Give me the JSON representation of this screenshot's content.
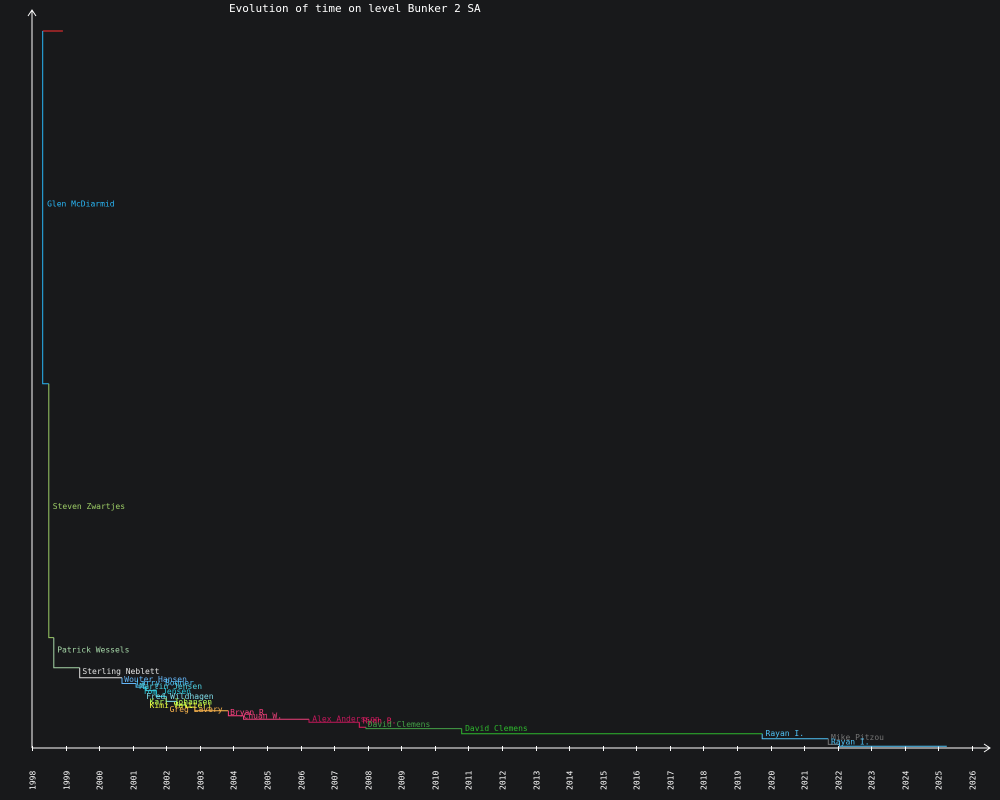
{
  "chart_data": {
    "type": "line",
    "title": "Evolution of time on level Bunker 2 SA",
    "xlabel": "",
    "ylabel": "",
    "x_ticks": [
      "1998",
      "1999",
      "2000",
      "2001",
      "2002",
      "2003",
      "2004",
      "2005",
      "2006",
      "2007",
      "2008",
      "2009",
      "2010",
      "2011",
      "2012",
      "2013",
      "2014",
      "2015",
      "2016",
      "2017",
      "2018",
      "2019",
      "2020",
      "2021",
      "2022",
      "2023",
      "2024",
      "2025",
      "2026"
    ],
    "xlim": [
      1998.0,
      2026.0
    ],
    "ylim": [
      0,
      100
    ],
    "grid": false,
    "legend": "none",
    "series": [
      {
        "name": "",
        "color": "#ff3030",
        "points": [
          [
            1998.32,
            100.0
          ],
          [
            1998.92,
            100.0
          ]
        ]
      },
      {
        "name": "Glen McDiarmid",
        "color": "#29b6f6",
        "label_at": [
          1998.45,
          75.5
        ],
        "points": [
          [
            1998.32,
            100.0
          ],
          [
            1998.32,
            50.8
          ],
          [
            1998.5,
            50.8
          ]
        ]
      },
      {
        "name": "Steven Zwartjes",
        "color": "#9ccc65",
        "label_at": [
          1998.62,
          33.3
        ],
        "points": [
          [
            1998.5,
            50.8
          ],
          [
            1998.5,
            15.4
          ],
          [
            1998.65,
            15.4
          ]
        ]
      },
      {
        "name": "Patrick Wessels",
        "color": "#a5d6a7",
        "label_at": [
          1998.75,
          13.3
        ],
        "points": [
          [
            1998.65,
            15.4
          ],
          [
            1998.65,
            11.2
          ],
          [
            1999.42,
            11.2
          ]
        ]
      },
      {
        "name": "Sterling Neblett",
        "color": "#e0e0e0",
        "label_at": [
          1999.5,
          10.3
        ],
        "points": [
          [
            1999.42,
            11.2
          ],
          [
            1999.42,
            9.8
          ],
          [
            2000.68,
            9.8
          ]
        ]
      },
      {
        "name": "Wouter Hansen",
        "color": "#64b5f6",
        "label_at": [
          2000.75,
          9.2
        ],
        "points": [
          [
            2000.68,
            9.8
          ],
          [
            2000.68,
            9.0
          ],
          [
            2001.1,
            9.0
          ]
        ]
      },
      {
        "name": "Larry Bodner",
        "color": "#4fc3f7",
        "label_at": [
          2001.1,
          8.7
        ],
        "points": [
          [
            2001.1,
            9.0
          ],
          [
            2001.1,
            8.5
          ],
          [
            2001.4,
            8.5
          ]
        ]
      },
      {
        "name": "Martin Jensen",
        "color": "#4dd0e1",
        "label_at": [
          2001.2,
          8.2
        ],
        "points": [
          [
            2001.4,
            8.5
          ],
          [
            2001.4,
            8.0
          ],
          [
            2001.7,
            8.0
          ]
        ]
      },
      {
        "name": "Tom Jensen",
        "color": "#26c6da",
        "label_at": [
          2001.3,
          7.5
        ],
        "points": [
          [
            2001.7,
            8.0
          ],
          [
            2001.7,
            7.2
          ],
          [
            2002.0,
            7.2
          ]
        ]
      },
      {
        "name": "Fred Wildhagen",
        "color": "#80deea",
        "label_at": [
          2001.4,
          6.8
        ],
        "points": [
          [
            2002.0,
            7.2
          ],
          [
            2002.0,
            6.5
          ],
          [
            2002.3,
            6.5
          ]
        ]
      },
      {
        "name": "Karl Johansen",
        "color": "#b2ff59",
        "label_at": [
          2001.5,
          6.1
        ],
        "points": [
          [
            2002.3,
            6.5
          ],
          [
            2002.3,
            6.0
          ],
          [
            2002.6,
            6.0
          ]
        ]
      },
      {
        "name": "Kimi Valtteri",
        "color": "#eeff41",
        "label_at": [
          2001.5,
          5.6
        ],
        "points": [
          [
            2002.6,
            6.0
          ],
          [
            2002.6,
            5.7
          ],
          [
            2002.85,
            5.7
          ]
        ]
      },
      {
        "name": "Greg Lavery",
        "color": "#ffb74d",
        "label_at": [
          2002.1,
          5.0
        ],
        "points": [
          [
            2002.85,
            5.7
          ],
          [
            2002.85,
            5.2
          ],
          [
            2003.85,
            5.2
          ]
        ]
      },
      {
        "name": "Bryan R.",
        "color": "#ff4081",
        "label_at": [
          2003.9,
          4.6
        ],
        "points": [
          [
            2003.85,
            5.2
          ],
          [
            2003.85,
            4.5
          ],
          [
            2004.3,
            4.5
          ]
        ]
      },
      {
        "name": "Chuan W.",
        "color": "#ec407a",
        "label_at": [
          2004.3,
          4.1
        ],
        "points": [
          [
            2004.3,
            4.5
          ],
          [
            2004.3,
            4.0
          ],
          [
            2006.25,
            4.0
          ]
        ]
      },
      {
        "name": "Alex Andersson",
        "color": "#c2185b",
        "label_at": [
          2006.35,
          3.7
        ],
        "points": [
          [
            2006.25,
            4.0
          ],
          [
            2006.25,
            3.6
          ],
          [
            2007.75,
            3.6
          ]
        ]
      },
      {
        "name": "Ryan B.",
        "color": "#e91e63",
        "label_at": [
          2007.85,
          3.4
        ],
        "points": [
          [
            2007.75,
            3.6
          ],
          [
            2007.75,
            2.9
          ],
          [
            2007.95,
            2.9
          ]
        ]
      },
      {
        "name": "David Clemens",
        "color": "#43a047",
        "label_at": [
          2008.0,
          2.9
        ],
        "points": [
          [
            2007.95,
            2.9
          ],
          [
            2007.95,
            2.7
          ],
          [
            2010.8,
            2.7
          ]
        ]
      },
      {
        "name": "David Clemens",
        "color": "#2eb82e",
        "label_at": [
          2010.9,
          2.4
        ],
        "points": [
          [
            2010.8,
            2.7
          ],
          [
            2010.8,
            2.0
          ],
          [
            2019.75,
            2.0
          ]
        ]
      },
      {
        "name": "Rayan I.",
        "color": "#4fc3f7",
        "label_at": [
          2019.85,
          1.7
        ],
        "points": [
          [
            2019.75,
            2.0
          ],
          [
            2019.75,
            1.3
          ],
          [
            2021.72,
            1.3
          ]
        ]
      },
      {
        "name": "Mike Pitzou",
        "color": "#757575",
        "label_at": [
          2021.8,
          1.1
        ],
        "points": [
          [
            2021.72,
            1.3
          ],
          [
            2021.72,
            0.5
          ],
          [
            2022.05,
            0.5
          ]
        ]
      },
      {
        "name": "Rayan I.",
        "color": "#4fc3f7",
        "label_at": [
          2021.8,
          0.5
        ],
        "points": [
          [
            2022.05,
            0.5
          ],
          [
            2022.05,
            0.25
          ],
          [
            2025.25,
            0.25
          ]
        ]
      }
    ]
  }
}
